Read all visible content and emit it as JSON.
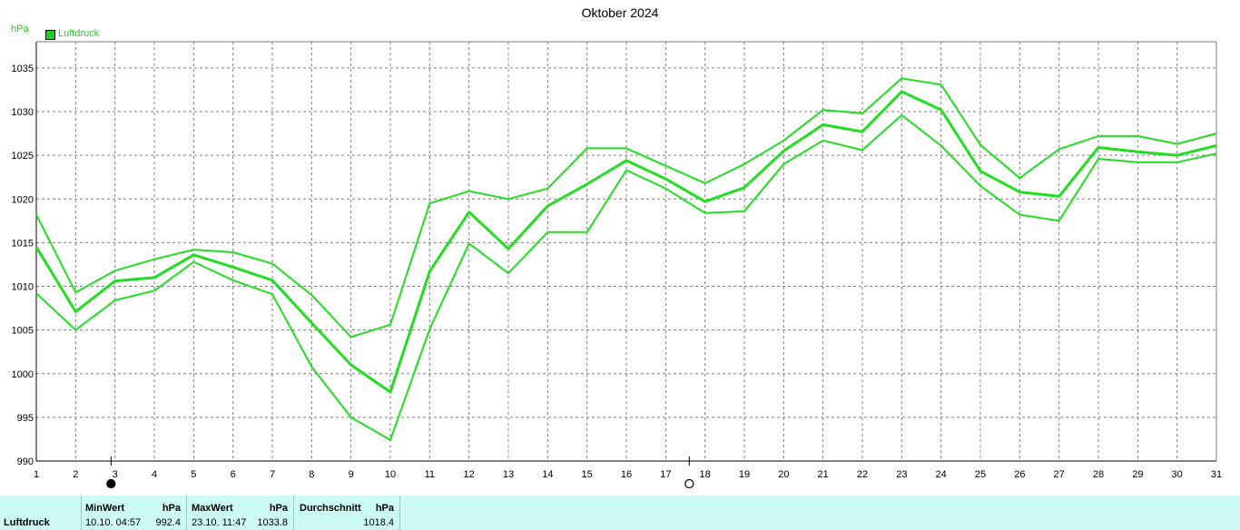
{
  "chart_data": {
    "type": "line",
    "title": "Oktober 2024",
    "ylabel": "hPa",
    "xlabel": "",
    "legend": [
      "Luftdruck"
    ],
    "legend_placement": "top-left",
    "grid": true,
    "ylim": [
      990,
      1038
    ],
    "yticks": [
      990,
      995,
      1000,
      1005,
      1010,
      1015,
      1020,
      1025,
      1030,
      1035
    ],
    "x": [
      1,
      2,
      3,
      4,
      5,
      6,
      7,
      8,
      9,
      10,
      11,
      12,
      13,
      14,
      15,
      16,
      17,
      18,
      19,
      20,
      21,
      22,
      23,
      24,
      25,
      26,
      27,
      28,
      29,
      30,
      31
    ],
    "series": [
      {
        "name": "Luftdruck",
        "role": "max",
        "values": [
          1018.2,
          1009.3,
          1011.8,
          1013.1,
          1014.2,
          1013.9,
          1012.6,
          1009.0,
          1004.2,
          1005.6,
          1019.5,
          1020.9,
          1020.0,
          1021.2,
          1025.8,
          1025.8,
          1023.8,
          1021.8,
          1024.0,
          1026.7,
          1030.2,
          1029.8,
          1033.8,
          1033.1,
          1026.2,
          1022.4,
          1025.7,
          1027.2,
          1027.2,
          1026.3,
          1027.5
        ]
      },
      {
        "name": "Luftdruck",
        "role": "mean",
        "values": [
          1014.5,
          1007.1,
          1010.6,
          1011.0,
          1013.6,
          1012.2,
          1010.7,
          1005.8,
          1001.0,
          997.9,
          1011.7,
          1018.5,
          1014.3,
          1019.2,
          1021.7,
          1024.4,
          1022.3,
          1019.7,
          1021.3,
          1025.5,
          1028.5,
          1027.7,
          1032.3,
          1030.2,
          1023.2,
          1020.8,
          1020.3,
          1025.9,
          1025.4,
          1025.0,
          1026.1
        ]
      },
      {
        "name": "Luftdruck",
        "role": "min",
        "values": [
          1009.2,
          1005.0,
          1008.4,
          1009.5,
          1012.8,
          1010.7,
          1009.1,
          1000.8,
          995.0,
          992.4,
          1005.1,
          1014.9,
          1011.5,
          1016.2,
          1016.2,
          1023.3,
          1021.2,
          1018.4,
          1018.6,
          1024.0,
          1026.7,
          1025.6,
          1029.6,
          1026.1,
          1021.5,
          1018.2,
          1017.5,
          1024.6,
          1024.2,
          1024.2,
          1025.2
        ]
      }
    ],
    "moon_phases": [
      {
        "day": 2.9,
        "symbol": "●"
      },
      {
        "day": 17.6,
        "symbol": "○"
      }
    ],
    "colors": {
      "series": "#22dd22",
      "grid": "#808080",
      "axis": "#000000"
    }
  },
  "stats": {
    "row_label": "Luftdruck",
    "min_header": "MinWert",
    "min_unit": "hPa",
    "min_time": "10.10.  04:57",
    "min_value": "992.4",
    "max_header": "MaxWert",
    "max_unit": "hPa",
    "max_time": "23.10.  11:47",
    "max_value": "1033.8",
    "avg_header": "Durchschnitt",
    "avg_unit": "hPa",
    "avg_value": "1018.4"
  }
}
